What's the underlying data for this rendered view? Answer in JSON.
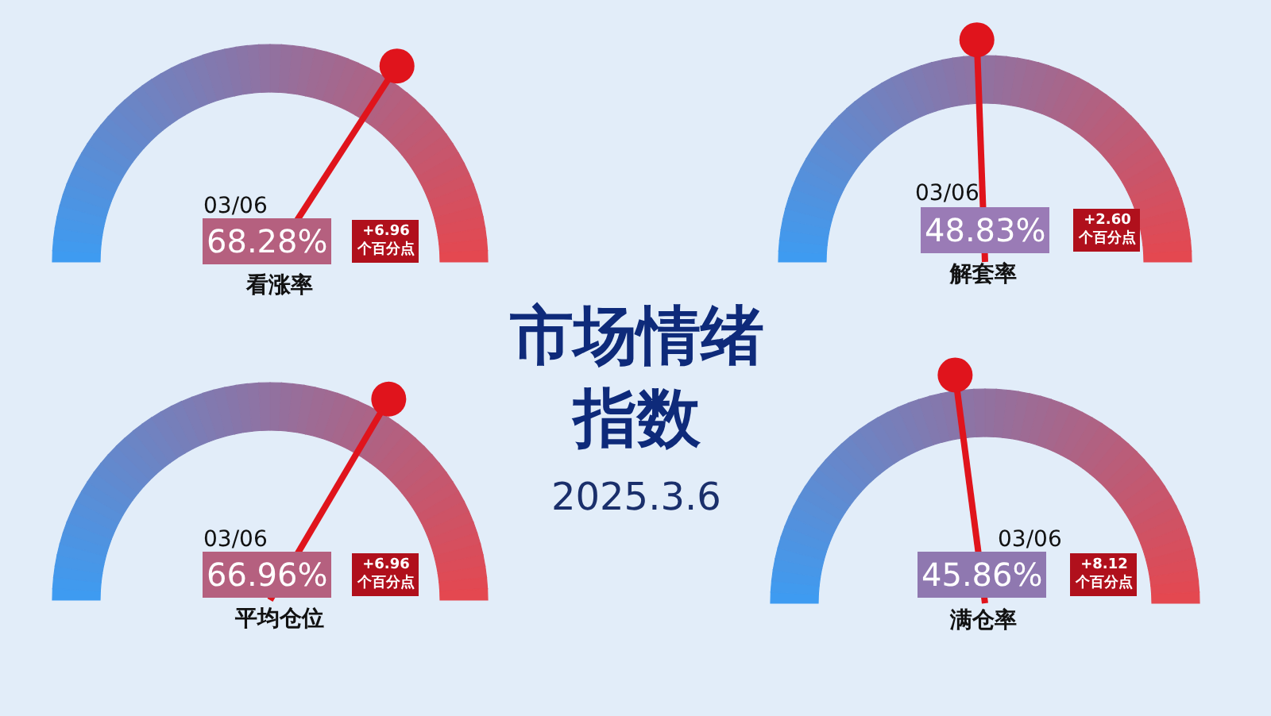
{
  "chart_data": [
    {
      "type": "other",
      "title": "看涨率",
      "values": [
        68.28
      ],
      "value_labels": [
        "68.28%"
      ],
      "annotations": [
        "03/06",
        "+6.96\n个百分点"
      ]
    },
    {
      "type": "other",
      "title": "解套率",
      "values": [
        48.83
      ],
      "value_labels": [
        "48.83%"
      ],
      "annotations": [
        "03/06",
        "+2.60\n个百分点"
      ]
    },
    {
      "type": "other",
      "title": "市场情绪指数",
      "subtitle": "2025.3.6"
    },
    {
      "type": "other",
      "title": "平均仓位",
      "values": [
        66.96
      ],
      "value_labels": [
        "66.96%"
      ],
      "annotations": [
        "03/06",
        "+6.96\n个百分点"
      ]
    },
    {
      "type": "other",
      "title": "满仓率",
      "values": [
        45.86
      ],
      "value_labels": [
        "45.86%"
      ],
      "annotations": [
        "03/06",
        "+8.12\n个百分点"
      ]
    }
  ]
}
